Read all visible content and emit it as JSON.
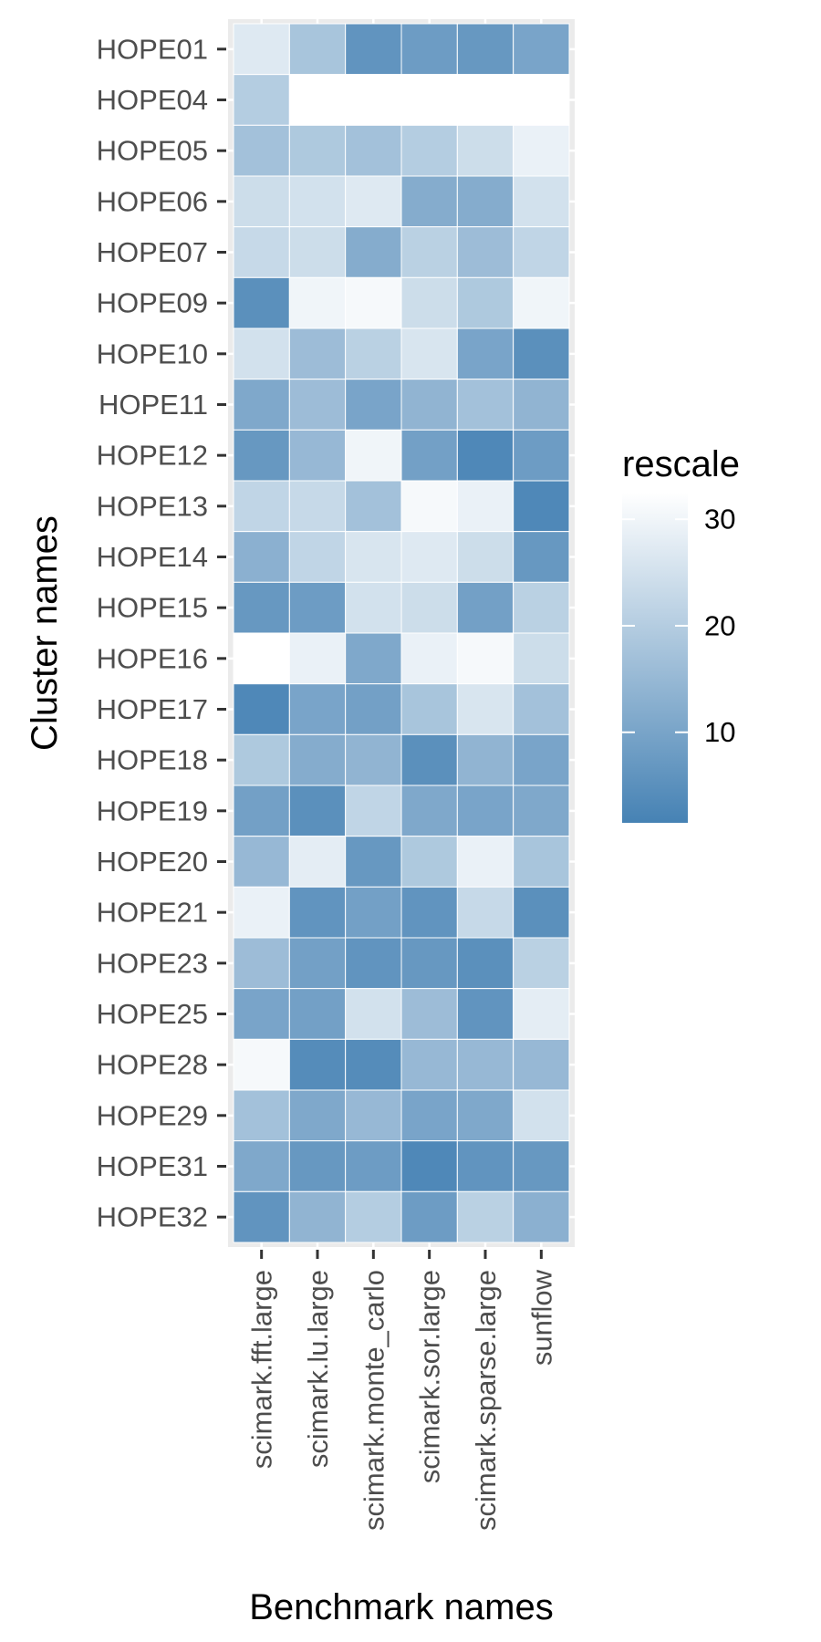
{
  "chart_data": {
    "type": "heatmap",
    "title": "",
    "xlabel": "Benchmark names",
    "ylabel": "Cluster names",
    "x_categories": [
      "scimark.fft.large",
      "scimark.lu.large",
      "scimark.monte_carlo",
      "scimark.sor.large",
      "scimark.sparse.large",
      "sunflow"
    ],
    "y_categories": [
      "HOPE01",
      "HOPE04",
      "HOPE05",
      "HOPE06",
      "HOPE07",
      "HOPE09",
      "HOPE10",
      "HOPE11",
      "HOPE12",
      "HOPE13",
      "HOPE14",
      "HOPE15",
      "HOPE16",
      "HOPE17",
      "HOPE18",
      "HOPE19",
      "HOPE20",
      "HOPE21",
      "HOPE23",
      "HOPE25",
      "HOPE28",
      "HOPE29",
      "HOPE31",
      "HOPE32"
    ],
    "values": [
      [
        27,
        18,
        6,
        8,
        7,
        10
      ],
      [
        20,
        null,
        null,
        null,
        null,
        null
      ],
      [
        17,
        19,
        17,
        20,
        24,
        29
      ],
      [
        24,
        25,
        27,
        12,
        12,
        25
      ],
      [
        23,
        24,
        12,
        21,
        16,
        22
      ],
      [
        5,
        30,
        31,
        24,
        19,
        30
      ],
      [
        25,
        16,
        21,
        26,
        10,
        5
      ],
      [
        11,
        16,
        10,
        14,
        17,
        14
      ],
      [
        7,
        15,
        30,
        9,
        3,
        8
      ],
      [
        22,
        23,
        17,
        31,
        29,
        3
      ],
      [
        13,
        22,
        26,
        27,
        24,
        7
      ],
      [
        7,
        8,
        25,
        24,
        9,
        21
      ],
      [
        33,
        29,
        11,
        29,
        31,
        24
      ],
      [
        3,
        10,
        9,
        18,
        26,
        17
      ],
      [
        19,
        12,
        14,
        5,
        14,
        10
      ],
      [
        9,
        5,
        22,
        11,
        10,
        11
      ],
      [
        15,
        28,
        7,
        19,
        29,
        18
      ],
      [
        29,
        6,
        9,
        6,
        23,
        5
      ],
      [
        16,
        9,
        6,
        7,
        5,
        21
      ],
      [
        10,
        9,
        25,
        16,
        6,
        28
      ],
      [
        31,
        4,
        4,
        15,
        15,
        15
      ],
      [
        17,
        11,
        15,
        10,
        11,
        25
      ],
      [
        11,
        7,
        8,
        3,
        6,
        7
      ],
      [
        6,
        14,
        20,
        8,
        21,
        13
      ]
    ],
    "missing_fill": "#ffffff",
    "panel_background": "#ebebeb",
    "grid": true,
    "legend": {
      "title": "rescale",
      "position": "right",
      "ticks": [
        10,
        20,
        30
      ],
      "range": [
        1.5,
        32.5
      ],
      "low_color": "#4682b4",
      "high_color": "#ffffff"
    }
  }
}
